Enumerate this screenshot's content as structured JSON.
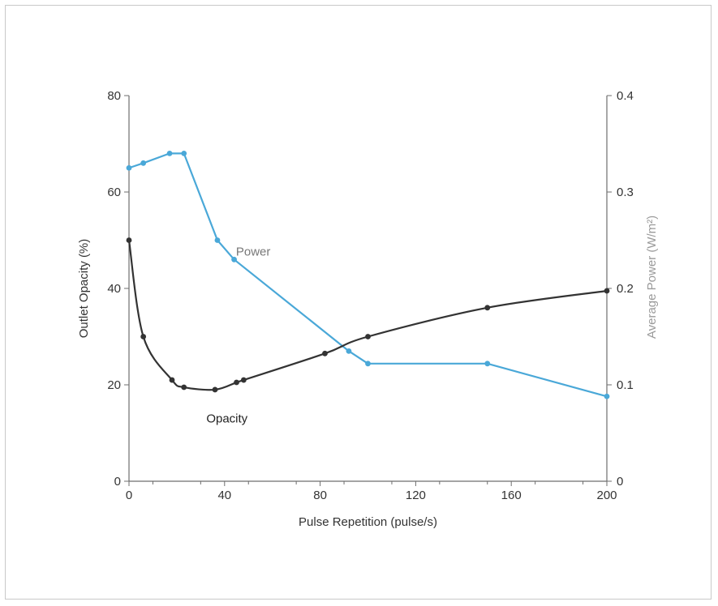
{
  "chart_data": {
    "type": "line",
    "title": "",
    "xlabel": "Pulse Repetition (pulse/s)",
    "ylabel_left": "Outlet Opacity (%)",
    "ylabel_right": "Average Power (W/m²)",
    "xlim": [
      0,
      200
    ],
    "ylim_left": [
      0,
      80
    ],
    "ylim_right": [
      0,
      0.4
    ],
    "x_ticks": [
      0,
      40,
      80,
      120,
      160,
      200
    ],
    "y_left_ticks": [
      0,
      20,
      40,
      60,
      80
    ],
    "y_right_ticks": [
      0,
      0.1,
      0.2,
      0.3,
      0.4
    ],
    "grid": false,
    "series": [
      {
        "name": "Power",
        "axis": "right",
        "color": "#4aa8d8",
        "x": [
          0,
          6,
          17,
          23,
          37,
          44,
          92,
          100,
          150,
          200
        ],
        "y": [
          0.325,
          0.33,
          0.34,
          0.34,
          0.25,
          0.23,
          0.135,
          0.122,
          0.122,
          0.088
        ]
      },
      {
        "name": "Opacity",
        "axis": "left",
        "color": "#333333",
        "x": [
          0,
          6,
          18,
          23,
          36,
          45,
          48,
          82,
          100,
          150,
          200
        ],
        "y": [
          50,
          30,
          21,
          19.5,
          19,
          20.5,
          21,
          26.5,
          30,
          36,
          39.5
        ]
      }
    ],
    "annotations": [
      {
        "text": "Power",
        "series": "Power"
      },
      {
        "text": "Opacity",
        "series": "Opacity"
      }
    ]
  }
}
